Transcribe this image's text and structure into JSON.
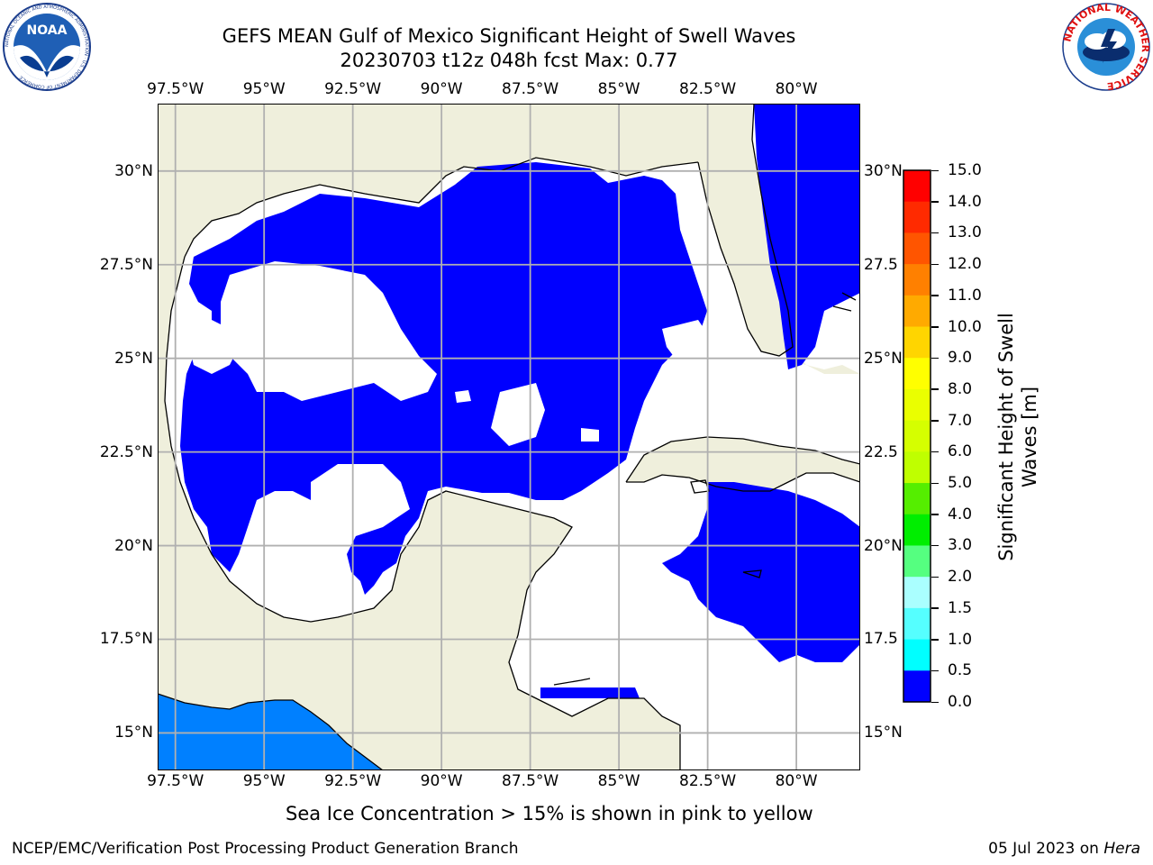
{
  "header": {
    "title_line1": "GEFS MEAN Gulf of Mexico Significant Height of Swell Waves",
    "title_line2": "20230703 t12z 048h fcst   Max: 0.77"
  },
  "logos": {
    "left": {
      "name": "noaa-logo",
      "text": "NOAA",
      "ring_text": "NATIONAL OCEANIC AND ATMOSPHERIC ADMINISTRATION · U.S. DEPARTMENT OF COMMERCE"
    },
    "right": {
      "name": "nws-logo",
      "ring_text": "NATIONAL WEATHER SERVICE"
    }
  },
  "map": {
    "lon_ticks": [
      "97.5°W",
      "95°W",
      "92.5°W",
      "90°W",
      "87.5°W",
      "85°W",
      "82.5°W",
      "80°W"
    ],
    "lon_values": [
      -97.5,
      -95,
      -92.5,
      -90,
      -87.5,
      -85,
      -82.5,
      -80
    ],
    "lat_ticks_left": [
      "30°N",
      "27.5°N",
      "25°N",
      "22.5°N",
      "20°N",
      "17.5°N",
      "15°N"
    ],
    "lat_ticks_right": [
      "30°N",
      "27.5",
      "25°N",
      "22.5",
      "20°N",
      "17.5",
      "15°N"
    ],
    "lat_values": [
      30,
      27.5,
      25,
      22.5,
      20,
      17.5,
      15
    ],
    "extent": {
      "lon_min": -98,
      "lon_max": -78.2,
      "lat_min": 14,
      "lat_max": 31.8
    },
    "colors": {
      "land": "#efefdc",
      "ocean_no_data": "#ffffff",
      "swell_0_0.5": "#0000ff",
      "swell_0.5_1": "#0080ff",
      "grid": "#b0b0b0",
      "coast": "#000000"
    }
  },
  "colorbar": {
    "label_line1": "Significant Height of Swell",
    "label_line2": "Waves [m]",
    "ticks": [
      "15.0",
      "14.0",
      "13.0",
      "12.0",
      "11.0",
      "10.0",
      "9.0",
      "8.0",
      "7.0",
      "6.0",
      "5.0",
      "4.0",
      "3.0",
      "2.0",
      "1.5",
      "1.0",
      "0.5",
      "0.0"
    ],
    "colors": [
      "#ff0000",
      "#ff2a00",
      "#ff5500",
      "#ff8000",
      "#ffaa00",
      "#ffd500",
      "#ffff00",
      "#eaff00",
      "#d5ff00",
      "#bfff00",
      "#55ee00",
      "#00ee00",
      "#55ff80",
      "#aaffff",
      "#55ffff",
      "#00ffff",
      "#0080ff",
      "#0000ff"
    ]
  },
  "note": "Sea Ice Concentration > 15% is shown in pink to yellow",
  "footer": {
    "left": "NCEP/EMC/Verification Post Processing Product Generation Branch",
    "date": "05 Jul 2023 on ",
    "host": "Hera"
  }
}
